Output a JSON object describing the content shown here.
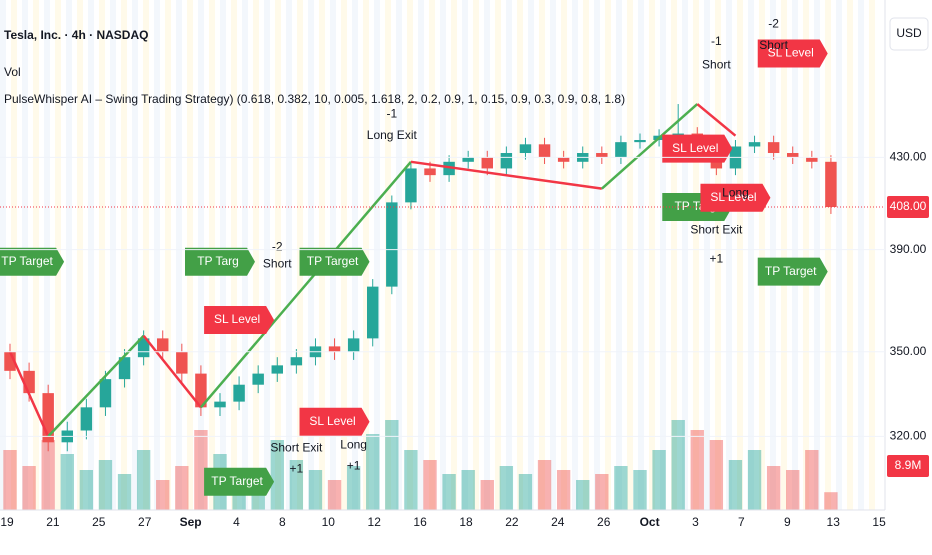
{
  "chart_data": {
    "type": "candlestick",
    "title": "Tesla, Inc. · 4h · NASDAQ",
    "subtitle": "Vol",
    "indicator": "PulseWhisper AI – Swing Trading Strategy) (0.618, 0.382, 10, 0.005, 1.618, 2, 0.2, 0.9, 1, 0.15, 0.9, 0.3, 0.9, 0.8, 1.8)",
    "currency": "USD",
    "log_scale": true,
    "ylim": [
      296,
      508
    ],
    "yticks": [
      {
        "value": 430,
        "label": "430.00"
      },
      {
        "value": 390,
        "label": "390.00"
      },
      {
        "value": 350,
        "label": "350.00"
      },
      {
        "value": 320,
        "label": "320.00"
      }
    ],
    "categories": [
      "19",
      "21",
      "25",
      "27",
      "Sep",
      "4",
      "8",
      "10",
      "12",
      "16",
      "18",
      "22",
      "24",
      "26",
      "Oct",
      "3",
      "7",
      "9",
      "13",
      "15"
    ],
    "up_color": "#26a69a",
    "down_color": "#ef5350",
    "open": [
      350,
      343,
      335,
      318,
      322,
      330,
      340,
      348,
      355,
      350,
      342,
      330,
      332,
      338,
      342,
      345,
      348,
      352,
      350,
      355,
      375,
      410,
      425,
      422,
      428,
      430,
      425,
      432,
      436,
      430,
      428,
      432,
      430,
      437,
      438,
      440,
      441,
      432,
      425,
      435,
      437,
      432,
      430,
      428
    ],
    "high": [
      353,
      346,
      338,
      325,
      333,
      343,
      351,
      358,
      358,
      353,
      345,
      335,
      341,
      345,
      348,
      351,
      355,
      355,
      358,
      378,
      413,
      428,
      428,
      431,
      433,
      433,
      435,
      439,
      439,
      433,
      435,
      435,
      440,
      441,
      443,
      455,
      444,
      435,
      438,
      440,
      440,
      435,
      433,
      431
    ],
    "low": [
      340,
      332,
      315,
      315,
      319,
      327,
      337,
      345,
      347,
      339,
      327,
      327,
      329,
      335,
      339,
      342,
      345,
      347,
      347,
      352,
      372,
      407,
      419,
      419,
      425,
      422,
      422,
      429,
      427,
      425,
      425,
      427,
      427,
      434,
      435,
      437,
      429,
      422,
      422,
      432,
      429,
      427,
      425,
      405
    ],
    "close": [
      343,
      335,
      318,
      322,
      330,
      340,
      348,
      355,
      350,
      342,
      330,
      332,
      338,
      342,
      345,
      348,
      352,
      350,
      355,
      375,
      410,
      425,
      422,
      428,
      430,
      425,
      432,
      436,
      430,
      428,
      432,
      430,
      437,
      438,
      440,
      441,
      432,
      425,
      435,
      437,
      432,
      430,
      428,
      408
    ],
    "volume": [
      30,
      22,
      35,
      28,
      20,
      25,
      18,
      30,
      15,
      22,
      40,
      28,
      20,
      18,
      35,
      25,
      20,
      15,
      22,
      38,
      45,
      30,
      25,
      18,
      20,
      15,
      22,
      18,
      25,
      20,
      15,
      18,
      22,
      20,
      30,
      45,
      40,
      35,
      25,
      30,
      22,
      20,
      30,
      8.9
    ],
    "volume_ylim": [
      0,
      110
    ],
    "last_price_label": "408.00",
    "last_volume_label": "8.9M",
    "swings": {
      "x": [
        0,
        2,
        7,
        10,
        21,
        31,
        36,
        38
      ],
      "y": [
        350,
        320,
        356,
        330,
        428,
        416,
        455,
        440
      ],
      "colors": [
        "#f23645",
        "#4caf50",
        "#f23645",
        "#4caf50",
        "#f23645",
        "#4caf50",
        "#f23645"
      ]
    },
    "annotations": [
      {
        "text": "TP Target",
        "color": "#43a047",
        "x": 1,
        "price": 385
      },
      {
        "text": "TP Targ",
        "color": "#43a047",
        "x": 11,
        "price": 385
      },
      {
        "text": "TP Target",
        "color": "#43a047",
        "x": 17,
        "price": 385
      },
      {
        "text": "SL Level",
        "color": "#f23645",
        "x": 12,
        "price": 362
      },
      {
        "text": "SL Level",
        "color": "#f23645",
        "x": 17,
        "price": 325
      },
      {
        "text": "TP Target",
        "color": "#43a047",
        "x": 12,
        "price": 305
      },
      {
        "text": "SL Level",
        "color": "#f23645",
        "x": 36,
        "price": 434
      },
      {
        "text": "TP Targ",
        "color": "#43a047",
        "x": 36,
        "price": 408
      },
      {
        "text": "SL Level",
        "color": "#f23645",
        "x": 38,
        "price": 412
      },
      {
        "text": "SL Level",
        "color": "#f23645",
        "x": 41,
        "price": 480
      },
      {
        "text": "TP Target",
        "color": "#43a047",
        "x": 41,
        "price": 381
      }
    ],
    "signals": [
      {
        "text": "-1",
        "x": 20,
        "price": 450
      },
      {
        "text": "Long Exit",
        "x": 20,
        "price": 440
      },
      {
        "text": "-2",
        "x": 14,
        "price": 391
      },
      {
        "text": "Short",
        "x": 14,
        "price": 384
      },
      {
        "text": "Short Exit",
        "x": 15,
        "price": 316
      },
      {
        "text": "+1",
        "x": 15,
        "price": 309
      },
      {
        "text": "Long",
        "x": 18,
        "price": 317
      },
      {
        "text": "+1",
        "x": 18,
        "price": 310
      },
      {
        "text": "-1",
        "x": 37,
        "price": 486
      },
      {
        "text": "Short",
        "x": 37,
        "price": 474
      },
      {
        "text": "-2",
        "x": 40,
        "price": 495
      },
      {
        "text": "Short",
        "x": 40,
        "price": 484
      },
      {
        "text": "Short Exit",
        "x": 37,
        "price": 398
      },
      {
        "text": "+1",
        "x": 37,
        "price": 386
      },
      {
        "text": "Long",
        "x": 38,
        "price": 414
      }
    ]
  }
}
